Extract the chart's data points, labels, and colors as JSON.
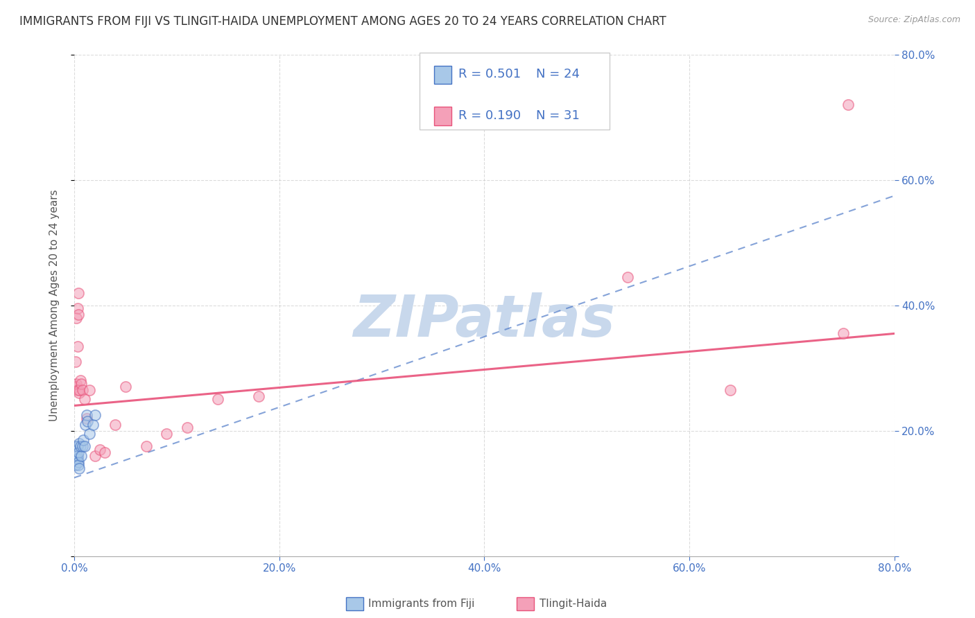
{
  "title": "IMMIGRANTS FROM FIJI VS TLINGIT-HAIDA UNEMPLOYMENT AMONG AGES 20 TO 24 YEARS CORRELATION CHART",
  "source": "Source: ZipAtlas.com",
  "ylabel": "Unemployment Among Ages 20 to 24 years",
  "xlabel_bottom_left": "Immigrants from Fiji",
  "xlabel_bottom_right": "Tlingit-Haida",
  "xlim": [
    0,
    0.8
  ],
  "ylim": [
    0,
    0.8
  ],
  "xticks": [
    0.0,
    0.2,
    0.4,
    0.6,
    0.8
  ],
  "yticks": [
    0.0,
    0.2,
    0.4,
    0.6,
    0.8
  ],
  "xticklabels": [
    "0.0%",
    "20.0%",
    "40.0%",
    "60.0%",
    "80.0%"
  ],
  "right_yticklabels": [
    "",
    "20.0%",
    "40.0%",
    "60.0%",
    "80.0%"
  ],
  "legend_r1": "R = 0.501",
  "legend_n1": "N = 24",
  "legend_r2": "R = 0.190",
  "legend_n2": "N = 31",
  "color_blue": "#A8C8E8",
  "color_pink": "#F4A0B8",
  "color_blue_dark": "#4472C4",
  "color_pink_dark": "#E8527A",
  "color_r_text": "#4472C4",
  "watermark_color": "#C8D8EC",
  "blue_scatter_x": [
    0.001,
    0.001,
    0.002,
    0.002,
    0.002,
    0.003,
    0.003,
    0.003,
    0.004,
    0.004,
    0.004,
    0.005,
    0.005,
    0.006,
    0.007,
    0.008,
    0.009,
    0.01,
    0.011,
    0.012,
    0.013,
    0.015,
    0.018,
    0.02
  ],
  "blue_scatter_y": [
    0.155,
    0.145,
    0.175,
    0.16,
    0.155,
    0.155,
    0.16,
    0.175,
    0.15,
    0.145,
    0.165,
    0.14,
    0.18,
    0.175,
    0.16,
    0.175,
    0.185,
    0.175,
    0.21,
    0.225,
    0.215,
    0.195,
    0.21,
    0.225
  ],
  "pink_scatter_x": [
    0.001,
    0.001,
    0.002,
    0.002,
    0.003,
    0.003,
    0.003,
    0.004,
    0.004,
    0.005,
    0.005,
    0.006,
    0.007,
    0.008,
    0.01,
    0.012,
    0.015,
    0.02,
    0.025,
    0.03,
    0.04,
    0.05,
    0.07,
    0.09,
    0.11,
    0.14,
    0.18,
    0.54,
    0.64,
    0.75,
    0.755
  ],
  "pink_scatter_y": [
    0.31,
    0.27,
    0.275,
    0.38,
    0.265,
    0.335,
    0.395,
    0.42,
    0.385,
    0.26,
    0.265,
    0.28,
    0.275,
    0.265,
    0.25,
    0.22,
    0.265,
    0.16,
    0.17,
    0.165,
    0.21,
    0.27,
    0.175,
    0.195,
    0.205,
    0.25,
    0.255,
    0.445,
    0.265,
    0.355,
    0.72
  ],
  "blue_line_x0": 0.0,
  "blue_line_x1": 0.8,
  "blue_line_y0": 0.125,
  "blue_line_y1": 0.575,
  "pink_line_x0": 0.0,
  "pink_line_x1": 0.8,
  "pink_line_y0": 0.24,
  "pink_line_y1": 0.355,
  "title_fontsize": 12,
  "axis_label_fontsize": 11,
  "tick_fontsize": 11,
  "legend_fontsize": 13,
  "scatter_size": 120,
  "scatter_alpha": 0.55,
  "scatter_linewidth": 1.2,
  "background_color": "#FFFFFF",
  "grid_color": "#CCCCCC"
}
